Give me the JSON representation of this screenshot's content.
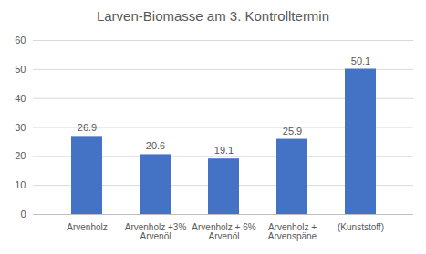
{
  "chart_data": {
    "type": "bar",
    "title": "Larven-Biomasse am 3. Kontrolltermin",
    "categories": [
      "Arvenholz",
      "Arvenholz +3% Arvenöl",
      "Arvenholz + 6% Arvenöl",
      "Arvenholz + Arvenspäne",
      "(Kunststoff)"
    ],
    "values": [
      26.9,
      20.6,
      19.1,
      25.9,
      50.1
    ],
    "color": "#4472c4",
    "ylim": [
      0,
      60
    ],
    "yticks": [
      0,
      10,
      20,
      30,
      40,
      50,
      60
    ],
    "grid": true,
    "data_labels": true
  }
}
